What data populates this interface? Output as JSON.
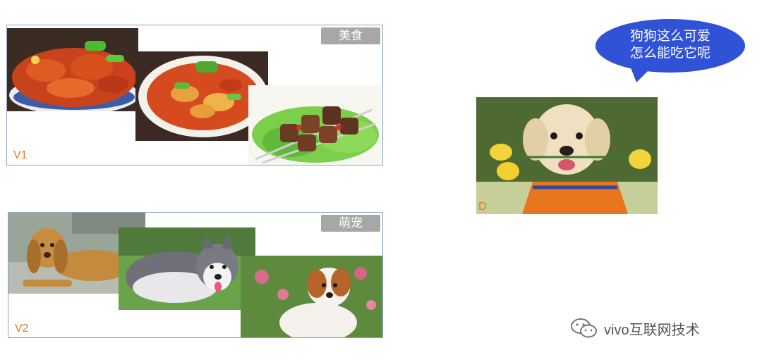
{
  "groups": {
    "v1": {
      "label": "V1",
      "tag": "美食"
    },
    "v2": {
      "label": "V2",
      "tag": "萌宠"
    },
    "d": {
      "label": "D"
    }
  },
  "speech_bubble": {
    "line1": "狗狗这么可爱",
    "line2": "怎么能吃它呢",
    "color": "#2f52d6"
  },
  "watermark": {
    "text": "vivo互联网技术",
    "icon": "wechat-icon"
  },
  "colors": {
    "box_border": "#8aa2c4",
    "tag_bg": "#a7a7a7",
    "label": "#e8761e"
  }
}
